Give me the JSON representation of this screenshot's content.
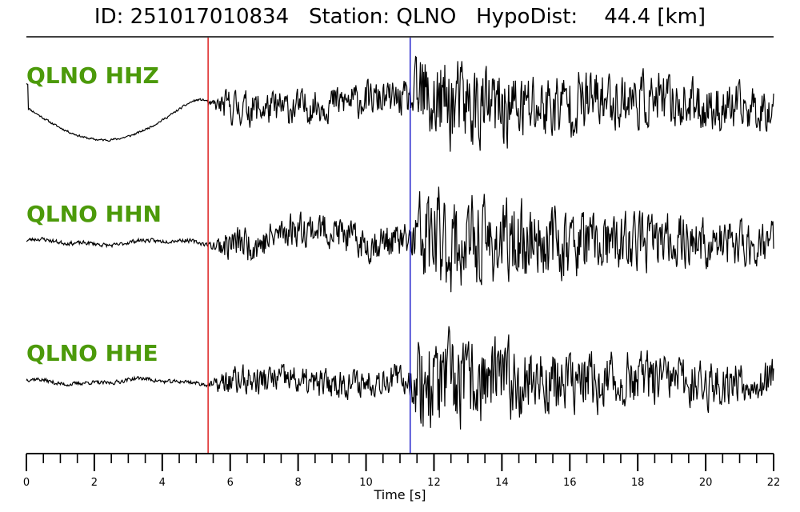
{
  "title": {
    "id_label": "ID:",
    "id_value": "251017010834",
    "station_label": "Station:",
    "station_value": "QLNO",
    "dist_label": "HypoDist:",
    "dist_value": "44.4",
    "dist_unit": "[km]"
  },
  "chart_data": {
    "type": "line",
    "xlabel": "Time [s]",
    "xlim": [
      0,
      22
    ],
    "major_ticks": [
      0,
      2,
      4,
      6,
      8,
      10,
      12,
      14,
      16,
      18,
      20,
      22
    ],
    "minor_tick_step": 0.5,
    "grid": false,
    "p_pick": {
      "time": 5.35,
      "color": "#dd2222"
    },
    "s_pick": {
      "time": 11.3,
      "color": "#2222cc"
    },
    "trace_color": "#000000",
    "label_color": "#4c9a0a",
    "series": [
      {
        "name": "QLNO HHZ",
        "noise_env": 0.02,
        "p_amp": 0.3,
        "s_amp": 0.65,
        "coda": 0.28,
        "seed": 11
      },
      {
        "name": "QLNO HHN",
        "noise_env": 0.04,
        "p_amp": 0.3,
        "s_amp": 0.75,
        "coda": 0.18,
        "seed": 23
      },
      {
        "name": "QLNO HHE",
        "noise_env": 0.04,
        "p_amp": 0.25,
        "s_amp": 0.8,
        "coda": 0.17,
        "seed": 37
      }
    ]
  }
}
